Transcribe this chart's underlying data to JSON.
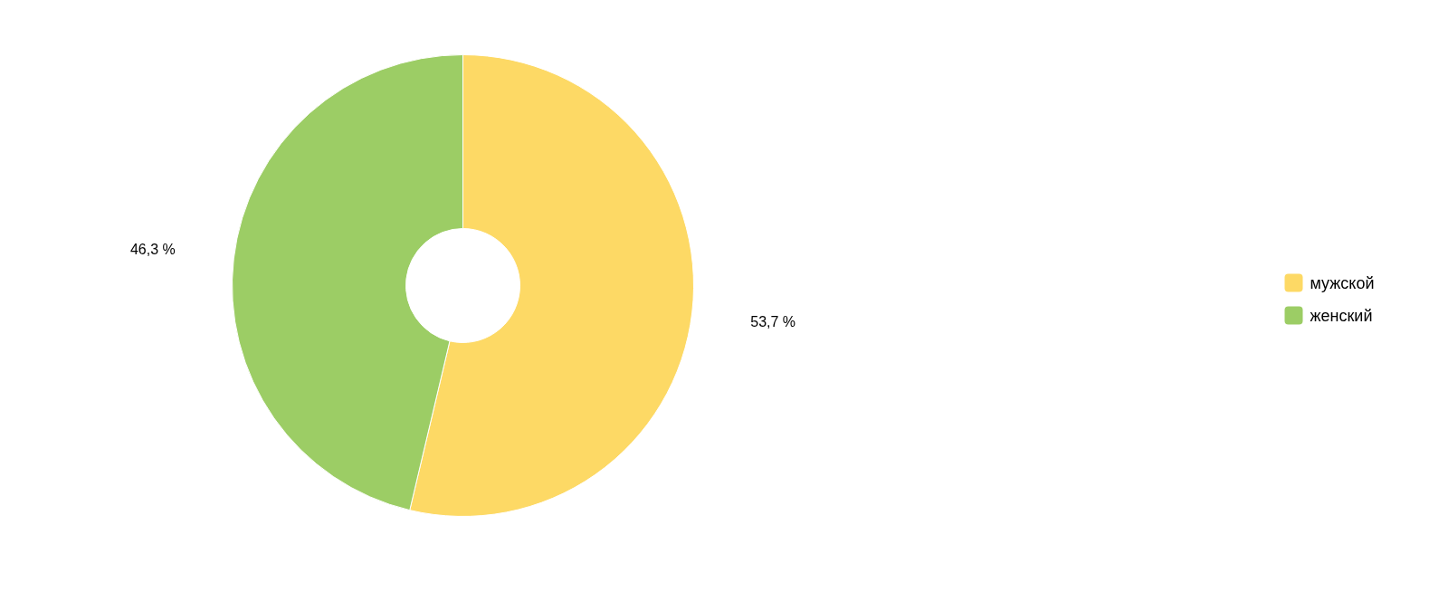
{
  "chart_data": {
    "type": "donut",
    "categories": [
      "мужской",
      "женский"
    ],
    "values": [
      53.7,
      46.3
    ],
    "colors": [
      "#fdd965",
      "#9ccd65"
    ],
    "value_labels": [
      "53,7 %",
      "46,3 %"
    ],
    "legend": "right"
  }
}
